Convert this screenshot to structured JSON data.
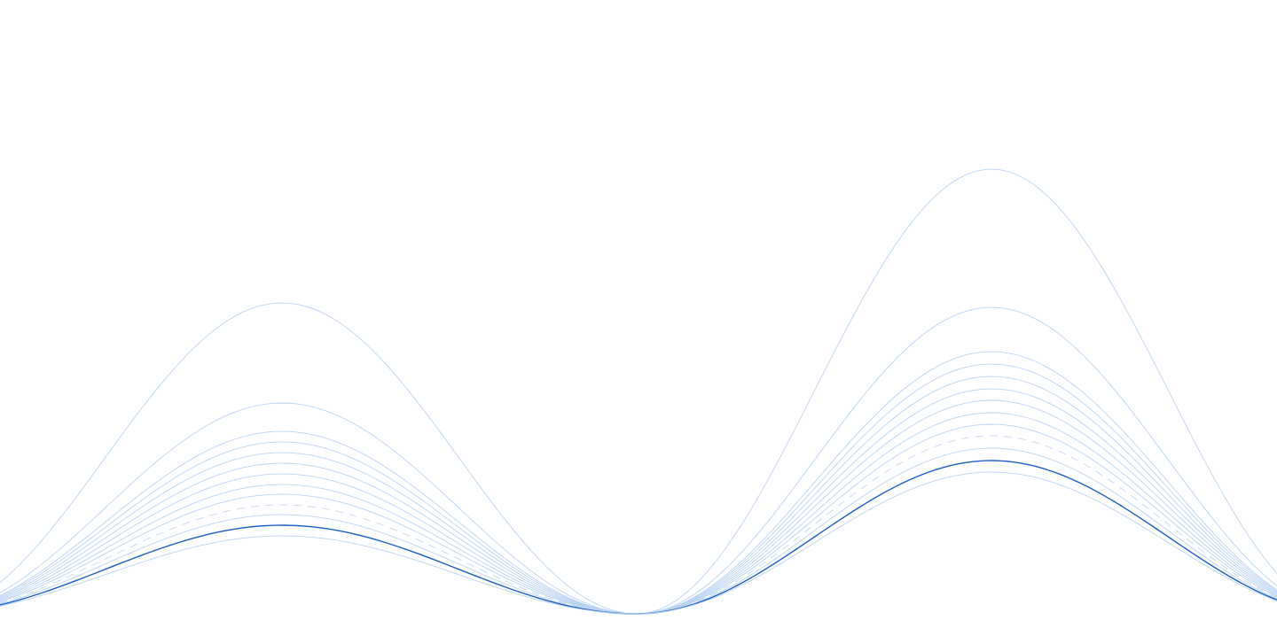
{
  "decoration": {
    "kind": "layered-wave-lines",
    "colors": {
      "background": "#ffffff",
      "thin_line": "#b8d2f3",
      "accent_line": "#1a5fc8",
      "dashed_line": "#c5d9f4"
    }
  }
}
